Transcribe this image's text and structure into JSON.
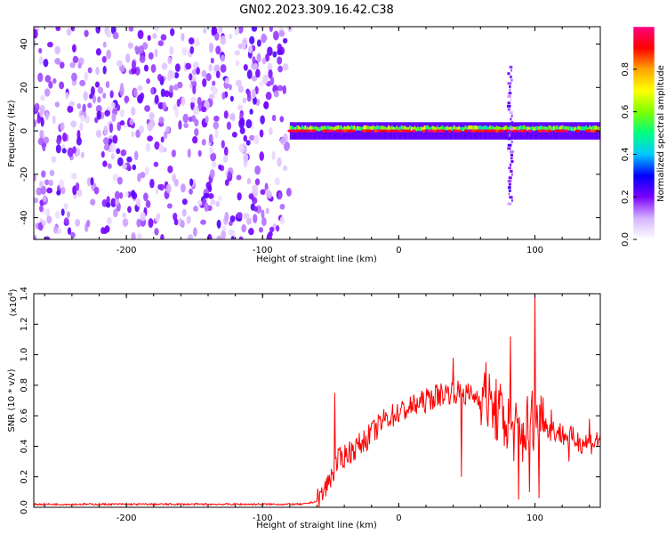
{
  "title": "GN02.2023.309.16.42.C38",
  "chart_data": [
    {
      "type": "heatmap",
      "xlabel": "Height of straight line (km)",
      "ylabel": "Frequency (Hz)",
      "xlim": [
        -268,
        148
      ],
      "ylim": [
        -50,
        48
      ],
      "xticks": [
        -200,
        -100,
        0,
        100
      ],
      "yticks": [
        -40,
        -20,
        0,
        20,
        40
      ],
      "colorbar": {
        "label": "Normalized spectral amplitude",
        "range": [
          0,
          1
        ],
        "ticks": [
          "0.0",
          "0.2",
          "0.4",
          "0.6",
          "0.8"
        ],
        "colors": [
          "#ffffff",
          "#d6b3ff",
          "#7a00ff",
          "#0000ff",
          "#00c8ff",
          "#00ff80",
          "#7fff00",
          "#ffff00",
          "#ffa500",
          "#ff0000",
          "#ff0080"
        ]
      },
      "noise_region": {
        "x_from": -268,
        "x_to": -80,
        "freq_from": -50,
        "freq_to": 48
      },
      "signal_band": {
        "x_from": -80,
        "x_to": 148,
        "center_freq": 0,
        "half_width": 3
      },
      "disturbance": {
        "x": 82,
        "freq_from": -33,
        "freq_to": 30
      }
    },
    {
      "type": "line",
      "xlabel": "Height of straight line (km)",
      "ylabel": "SNR (10 * v/v)",
      "y_multiplier": "(x10",
      "y_multiplier_exp": "4",
      "y_multiplier_close": ")",
      "xlim": [
        -268,
        148
      ],
      "ylim": [
        0,
        1.4
      ],
      "xticks": [
        -200,
        -100,
        0,
        100
      ],
      "yticks": [
        "0.0",
        "0.2",
        "0.4",
        "0.6",
        "0.8",
        "1.0",
        "1.2",
        "1.4"
      ],
      "series": [
        {
          "color": "#ff0000",
          "x": [
            -268,
            -200,
            -120,
            -70,
            -60,
            -55,
            -50,
            -45,
            -40,
            -30,
            -20,
            -10,
            0,
            10,
            20,
            30,
            40,
            50,
            60,
            70,
            75,
            80,
            85,
            90,
            95,
            100,
            105,
            110,
            120,
            130,
            140,
            148
          ],
          "y": [
            0.02,
            0.02,
            0.02,
            0.02,
            0.04,
            0.1,
            0.2,
            0.3,
            0.34,
            0.4,
            0.48,
            0.58,
            0.62,
            0.66,
            0.7,
            0.74,
            0.76,
            0.74,
            0.72,
            0.65,
            0.6,
            0.55,
            0.5,
            0.45,
            0.55,
            0.6,
            0.58,
            0.52,
            0.48,
            0.44,
            0.42,
            0.45
          ],
          "spikes": [
            {
              "x": -47,
              "y": 0.75
            },
            {
              "x": -20,
              "y": 0.55
            },
            {
              "x": 40,
              "y": 0.98
            },
            {
              "x": 46,
              "y": 0.2
            },
            {
              "x": 64,
              "y": 0.95
            },
            {
              "x": 70,
              "y": 0.6
            },
            {
              "x": 82,
              "y": 1.12
            },
            {
              "x": 88,
              "y": 0.05
            },
            {
              "x": 96,
              "y": 0.1
            },
            {
              "x": 100,
              "y": 1.4
            },
            {
              "x": 103,
              "y": 0.06
            },
            {
              "x": 106,
              "y": 0.72
            },
            {
              "x": 112,
              "y": 0.64
            },
            {
              "x": 125,
              "y": 0.3
            },
            {
              "x": 140,
              "y": 0.58
            }
          ]
        }
      ]
    }
  ]
}
